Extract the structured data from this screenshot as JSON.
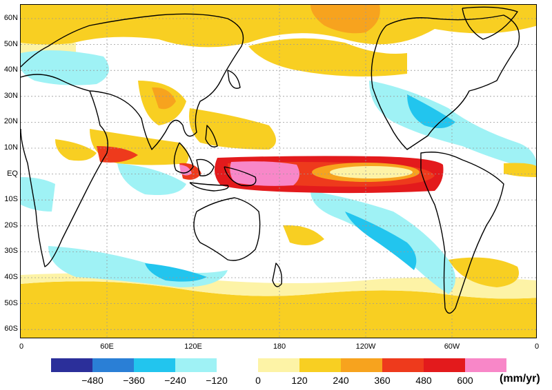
{
  "map": {
    "lat_labels": [
      "60N",
      "50N",
      "40N",
      "30N",
      "20N",
      "10N",
      "EQ",
      "10S",
      "20S",
      "30S",
      "40S",
      "50S",
      "60S"
    ],
    "lon_labels": [
      "0",
      "60E",
      "120E",
      "180",
      "120W",
      "60W",
      "0"
    ],
    "colors": {
      "land_coast": "#000000",
      "grid": "#999999",
      "neg480": "#2b2f9a",
      "neg360": "#2a7fd6",
      "neg240": "#22c5ee",
      "neg120": "#9ff2f5",
      "zero": "#ffffff",
      "pos120": "#fdf3a6",
      "pos240": "#f8cf22",
      "pos360": "#f7a31e",
      "pos480": "#ee3a1c",
      "pos600": "#e31a1c",
      "max": "#f887c8"
    }
  },
  "legend": {
    "labels": [
      "−480",
      "−360",
      "−240",
      "−120",
      "0",
      "120",
      "240",
      "360",
      "480",
      "600"
    ],
    "unit": "(mm/yr)",
    "colors": [
      "#2b2f9a",
      "#2a7fd6",
      "#22c5ee",
      "#9ff2f5",
      "#ffffff",
      "#fdf3a6",
      "#f8cf22",
      "#f7a31e",
      "#ee3a1c",
      "#e31a1c",
      "#f887c8"
    ]
  }
}
